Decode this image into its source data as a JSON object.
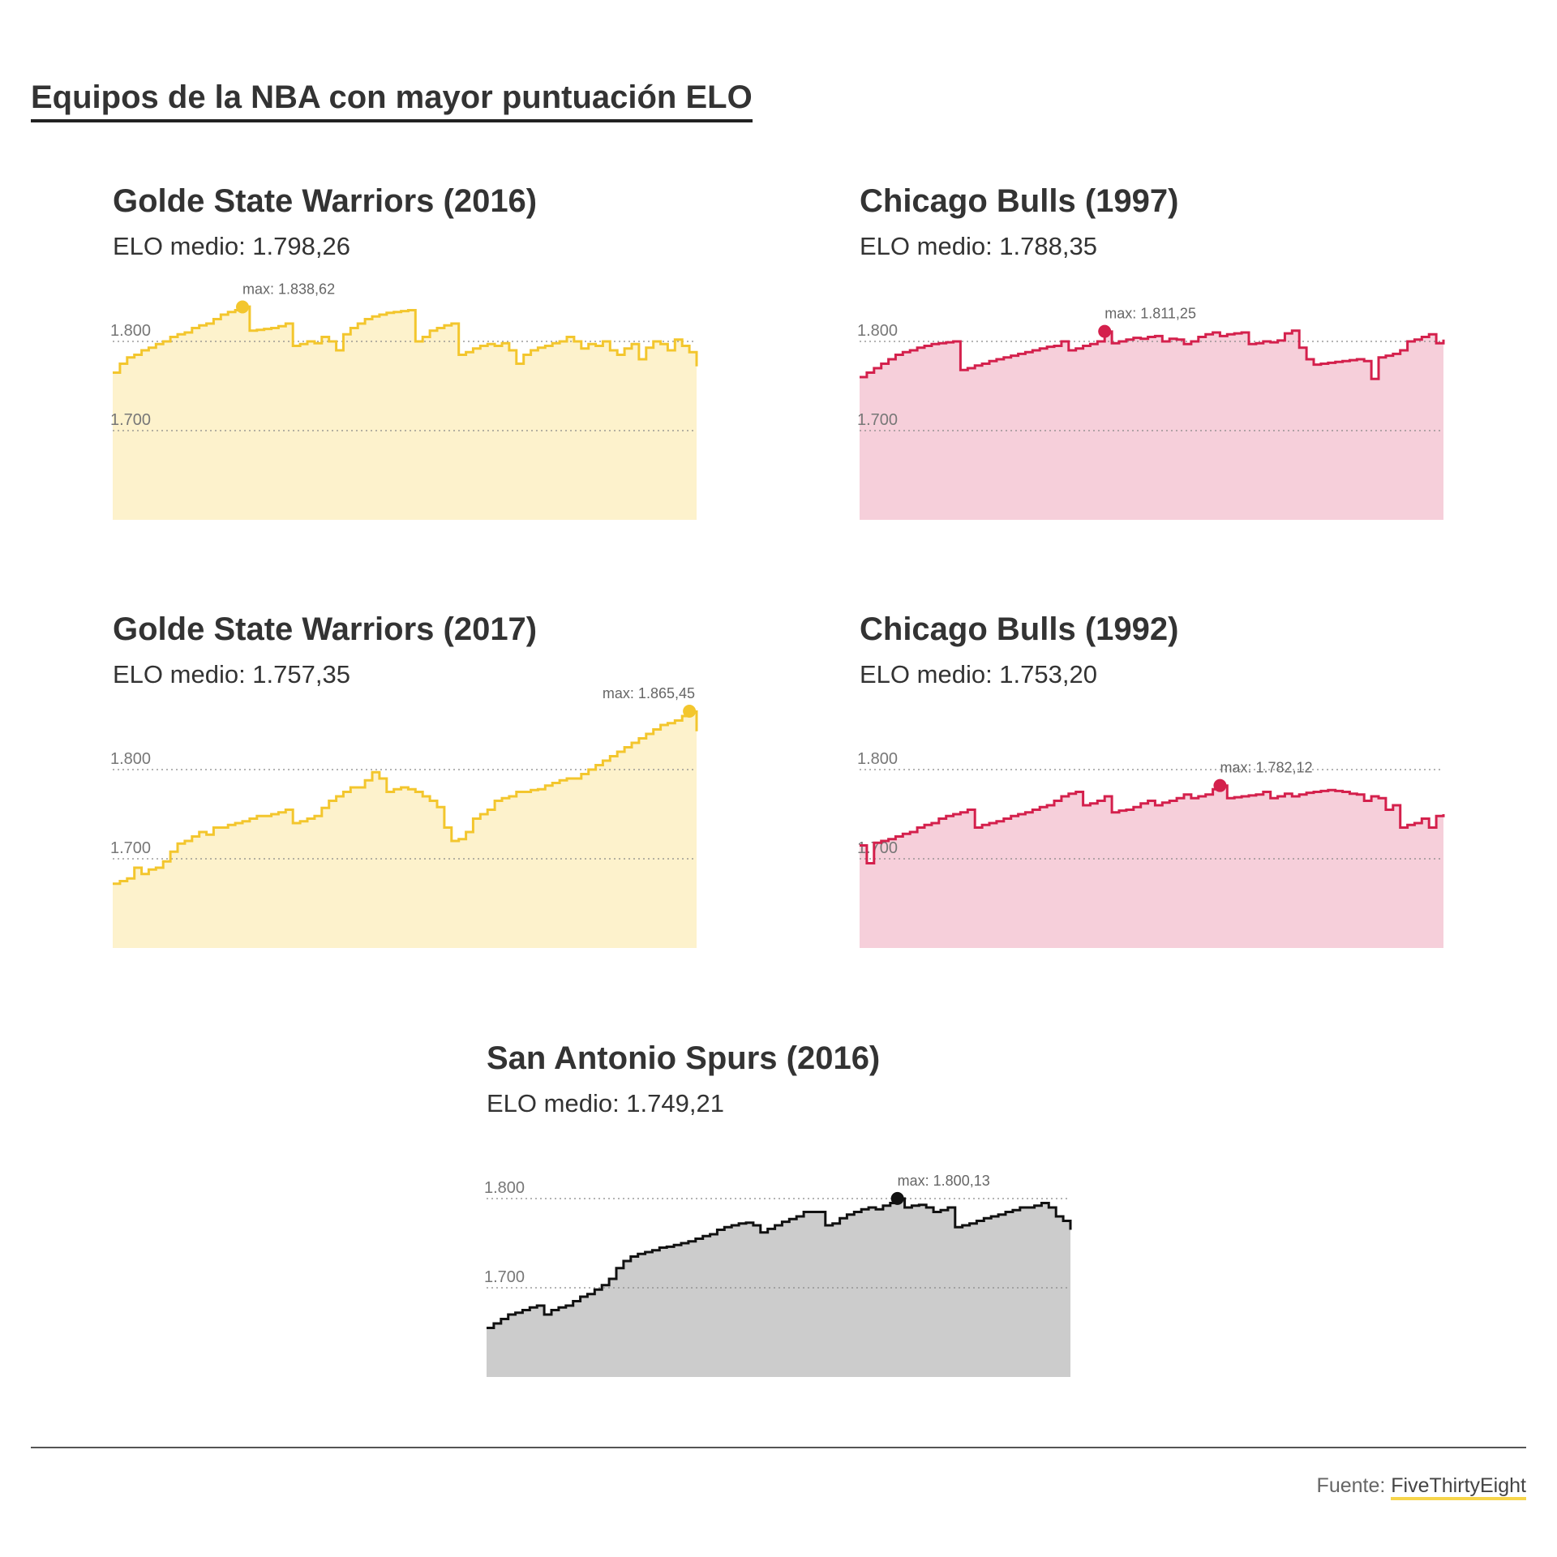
{
  "title": "Equipos de la NBA con mayor puntuación ELO",
  "source": {
    "prefix": "Fuente: ",
    "name": "FiveThirtyEight"
  },
  "chart_data": [
    {
      "type": "area",
      "key": "gsw2016",
      "title": "Golde State Warriors (2016)",
      "subtitle": "ELO medio: 1.798,26",
      "ylim": [
        1600,
        1850
      ],
      "yticks": [
        1700,
        1800
      ],
      "ytick_labels": [
        "1.700",
        "1.800"
      ],
      "grid": true,
      "colors": {
        "line": "#f3c62d",
        "fill": "#fdf2cc"
      },
      "max": {
        "label": "max: 1.838,62",
        "value": 1838.62,
        "x": 19
      },
      "x": [
        1,
        2,
        3,
        4,
        5,
        6,
        7,
        8,
        9,
        10,
        11,
        12,
        13,
        14,
        15,
        16,
        17,
        18,
        19,
        20,
        21,
        22,
        23,
        24,
        25,
        26,
        27,
        28,
        29,
        30,
        31,
        32,
        33,
        34,
        35,
        36,
        37,
        38,
        39,
        40,
        41,
        42,
        43,
        44,
        45,
        46,
        47,
        48,
        49,
        50,
        51,
        52,
        53,
        54,
        55,
        56,
        57,
        58,
        59,
        60,
        61,
        62,
        63,
        64,
        65,
        66,
        67,
        68,
        69,
        70,
        71,
        72,
        73,
        74,
        75,
        76,
        77,
        78,
        79,
        80,
        81,
        82
      ],
      "values": [
        1765,
        1775,
        1782,
        1785,
        1790,
        1793,
        1797,
        1800,
        1805,
        1808,
        1810,
        1815,
        1818,
        1820,
        1825,
        1830,
        1833,
        1835,
        1839,
        1812,
        1813,
        1814,
        1815,
        1817,
        1820,
        1795,
        1797,
        1800,
        1798,
        1805,
        1800,
        1790,
        1808,
        1815,
        1820,
        1825,
        1828,
        1830,
        1832,
        1833,
        1834,
        1835,
        1800,
        1805,
        1812,
        1815,
        1818,
        1820,
        1785,
        1788,
        1792,
        1795,
        1797,
        1795,
        1798,
        1790,
        1775,
        1785,
        1790,
        1793,
        1795,
        1798,
        1800,
        1805,
        1800,
        1792,
        1797,
        1795,
        1800,
        1790,
        1785,
        1792,
        1797,
        1780,
        1793,
        1800,
        1797,
        1790,
        1802,
        1795,
        1788,
        1772
      ],
      "xlabel": "",
      "ylabel": ""
    },
    {
      "type": "area",
      "key": "chi1997",
      "title": "Chicago Bulls (1997)",
      "subtitle": "ELO medio: 1.788,35",
      "ylim": [
        1600,
        1850
      ],
      "yticks": [
        1700,
        1800
      ],
      "ytick_labels": [
        "1.700",
        "1.800"
      ],
      "grid": true,
      "colors": {
        "line": "#d4204c",
        "fill": "#f6cfda"
      },
      "max": {
        "label": "max: 1.811,25",
        "value": 1811.25,
        "x": 35
      },
      "x": [
        1,
        2,
        3,
        4,
        5,
        6,
        7,
        8,
        9,
        10,
        11,
        12,
        13,
        14,
        15,
        16,
        17,
        18,
        19,
        20,
        21,
        22,
        23,
        24,
        25,
        26,
        27,
        28,
        29,
        30,
        31,
        32,
        33,
        34,
        35,
        36,
        37,
        38,
        39,
        40,
        41,
        42,
        43,
        44,
        45,
        46,
        47,
        48,
        49,
        50,
        51,
        52,
        53,
        54,
        55,
        56,
        57,
        58,
        59,
        60,
        61,
        62,
        63,
        64,
        65,
        66,
        67,
        68,
        69,
        70,
        71,
        72,
        73,
        74,
        75,
        76,
        77,
        78,
        79,
        80,
        81,
        82
      ],
      "values": [
        1760,
        1765,
        1770,
        1775,
        1780,
        1785,
        1788,
        1790,
        1793,
        1795,
        1797,
        1798,
        1799,
        1800,
        1768,
        1770,
        1773,
        1775,
        1778,
        1780,
        1782,
        1784,
        1786,
        1788,
        1790,
        1792,
        1794,
        1795,
        1800,
        1790,
        1792,
        1795,
        1797,
        1800,
        1811,
        1798,
        1800,
        1802,
        1804,
        1803,
        1805,
        1806,
        1800,
        1803,
        1802,
        1797,
        1800,
        1805,
        1808,
        1810,
        1806,
        1808,
        1809,
        1810,
        1797,
        1798,
        1800,
        1799,
        1801,
        1809,
        1812,
        1793,
        1780,
        1774,
        1775,
        1776,
        1777,
        1778,
        1779,
        1780,
        1778,
        1758,
        1782,
        1784,
        1786,
        1790,
        1800,
        1802,
        1805,
        1808,
        1798,
        1802
      ],
      "xlabel": "",
      "ylabel": ""
    },
    {
      "type": "area",
      "key": "gsw2017",
      "title": "Golde State Warriors (2017)",
      "subtitle": "ELO medio: 1.757,35",
      "ylim": [
        1600,
        1850
      ],
      "yticks": [
        1700,
        1800
      ],
      "ytick_labels": [
        "1.700",
        "1.800"
      ],
      "grid": true,
      "colors": {
        "line": "#f3c62d",
        "fill": "#fdf2cc"
      },
      "max": {
        "label": "max: 1.865,45",
        "value": 1865.45,
        "x": 81
      },
      "x": [
        1,
        2,
        3,
        4,
        5,
        6,
        7,
        8,
        9,
        10,
        11,
        12,
        13,
        14,
        15,
        16,
        17,
        18,
        19,
        20,
        21,
        22,
        23,
        24,
        25,
        26,
        27,
        28,
        29,
        30,
        31,
        32,
        33,
        34,
        35,
        36,
        37,
        38,
        39,
        40,
        41,
        42,
        43,
        44,
        45,
        46,
        47,
        48,
        49,
        50,
        51,
        52,
        53,
        54,
        55,
        56,
        57,
        58,
        59,
        60,
        61,
        62,
        63,
        64,
        65,
        66,
        67,
        68,
        69,
        70,
        71,
        72,
        73,
        74,
        75,
        76,
        77,
        78,
        79,
        80,
        81,
        82
      ],
      "values": [
        1672,
        1675,
        1678,
        1690,
        1683,
        1688,
        1690,
        1697,
        1708,
        1717,
        1720,
        1725,
        1730,
        1727,
        1735,
        1735,
        1738,
        1740,
        1742,
        1745,
        1748,
        1748,
        1750,
        1752,
        1755,
        1740,
        1742,
        1745,
        1748,
        1757,
        1765,
        1770,
        1775,
        1780,
        1780,
        1788,
        1797,
        1790,
        1775,
        1778,
        1780,
        1778,
        1775,
        1770,
        1765,
        1758,
        1735,
        1720,
        1722,
        1730,
        1745,
        1750,
        1755,
        1765,
        1768,
        1770,
        1775,
        1775,
        1777,
        1778,
        1782,
        1785,
        1788,
        1790,
        1790,
        1795,
        1800,
        1805,
        1810,
        1815,
        1820,
        1825,
        1830,
        1835,
        1840,
        1845,
        1850,
        1852,
        1855,
        1860,
        1865,
        1843
      ],
      "xlabel": "",
      "ylabel": ""
    },
    {
      "type": "area",
      "key": "chi1992",
      "title": "Chicago Bulls (1992)",
      "subtitle": "ELO medio: 1.753,20",
      "ylim": [
        1600,
        1850
      ],
      "yticks": [
        1700,
        1800
      ],
      "ytick_labels": [
        "1.700",
        "1.800"
      ],
      "grid": true,
      "colors": {
        "line": "#d4204c",
        "fill": "#f6cfda"
      },
      "max": {
        "label": "max: 1.782,12",
        "value": 1782.12,
        "x": 51
      },
      "x": [
        1,
        2,
        3,
        4,
        5,
        6,
        7,
        8,
        9,
        10,
        11,
        12,
        13,
        14,
        15,
        16,
        17,
        18,
        19,
        20,
        21,
        22,
        23,
        24,
        25,
        26,
        27,
        28,
        29,
        30,
        31,
        32,
        33,
        34,
        35,
        36,
        37,
        38,
        39,
        40,
        41,
        42,
        43,
        44,
        45,
        46,
        47,
        48,
        49,
        50,
        51,
        52,
        53,
        54,
        55,
        56,
        57,
        58,
        59,
        60,
        61,
        62,
        63,
        64,
        65,
        66,
        67,
        68,
        69,
        70,
        71,
        72,
        73,
        74,
        75,
        76,
        77,
        78,
        79,
        80,
        81,
        82
      ],
      "values": [
        1715,
        1695,
        1718,
        1720,
        1722,
        1725,
        1728,
        1730,
        1735,
        1738,
        1740,
        1745,
        1748,
        1750,
        1752,
        1755,
        1735,
        1738,
        1740,
        1742,
        1745,
        1748,
        1750,
        1752,
        1755,
        1758,
        1760,
        1765,
        1770,
        1773,
        1775,
        1760,
        1762,
        1765,
        1770,
        1752,
        1754,
        1755,
        1758,
        1762,
        1765,
        1760,
        1763,
        1765,
        1768,
        1772,
        1768,
        1770,
        1772,
        1778,
        1782,
        1768,
        1769,
        1770,
        1771,
        1772,
        1775,
        1768,
        1770,
        1773,
        1770,
        1772,
        1774,
        1775,
        1776,
        1777,
        1776,
        1775,
        1773,
        1772,
        1765,
        1770,
        1768,
        1755,
        1760,
        1735,
        1738,
        1740,
        1745,
        1735,
        1748,
        1750
      ],
      "xlabel": "",
      "ylabel": ""
    },
    {
      "type": "area",
      "key": "sas2016",
      "title": "San Antonio Spurs (2016)",
      "subtitle": "ELO medio: 1.749,21",
      "ylim": [
        1600,
        1850
      ],
      "yticks": [
        1700,
        1800
      ],
      "ytick_labels": [
        "1.700",
        "1.800"
      ],
      "grid": true,
      "colors": {
        "line": "#111111",
        "fill": "#cccccc"
      },
      "max": {
        "label": "max: 1.800,13",
        "value": 1800.13,
        "x": 58
      },
      "x": [
        1,
        2,
        3,
        4,
        5,
        6,
        7,
        8,
        9,
        10,
        11,
        12,
        13,
        14,
        15,
        16,
        17,
        18,
        19,
        20,
        21,
        22,
        23,
        24,
        25,
        26,
        27,
        28,
        29,
        30,
        31,
        32,
        33,
        34,
        35,
        36,
        37,
        38,
        39,
        40,
        41,
        42,
        43,
        44,
        45,
        46,
        47,
        48,
        49,
        50,
        51,
        52,
        53,
        54,
        55,
        56,
        57,
        58,
        59,
        60,
        61,
        62,
        63,
        64,
        65,
        66,
        67,
        68,
        69,
        70,
        71,
        72,
        73,
        74,
        75,
        76,
        77,
        78,
        79,
        80,
        81,
        82
      ],
      "values": [
        1655,
        1660,
        1665,
        1670,
        1672,
        1675,
        1678,
        1680,
        1670,
        1675,
        1678,
        1680,
        1685,
        1690,
        1693,
        1698,
        1703,
        1710,
        1722,
        1730,
        1735,
        1738,
        1740,
        1742,
        1745,
        1746,
        1748,
        1750,
        1752,
        1755,
        1758,
        1760,
        1765,
        1768,
        1770,
        1772,
        1773,
        1770,
        1762,
        1766,
        1770,
        1774,
        1777,
        1780,
        1785,
        1785,
        1785,
        1770,
        1772,
        1778,
        1782,
        1785,
        1788,
        1790,
        1788,
        1792,
        1795,
        1800,
        1790,
        1792,
        1793,
        1790,
        1785,
        1787,
        1790,
        1768,
        1770,
        1772,
        1775,
        1778,
        1780,
        1782,
        1785,
        1787,
        1790,
        1790,
        1792,
        1795,
        1790,
        1780,
        1775,
        1765
      ],
      "xlabel": "",
      "ylabel": ""
    }
  ]
}
